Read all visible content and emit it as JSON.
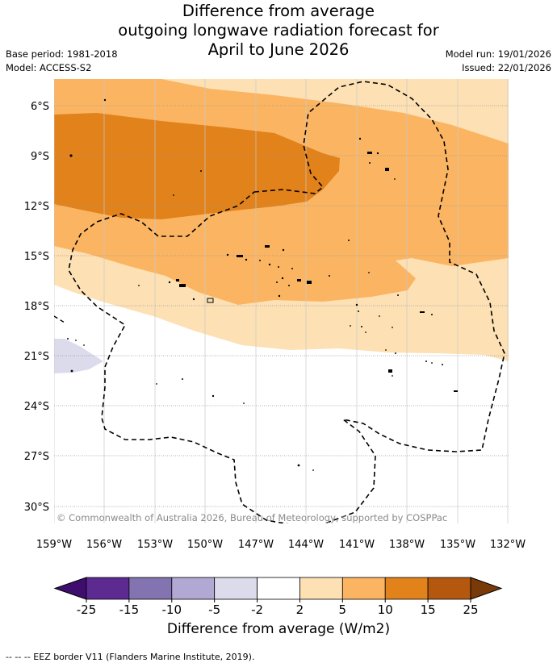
{
  "header": {
    "title_line1": "Difference from average",
    "title_line2": "outgoing longwave radiation forecast for",
    "title_line3": "April to June 2026",
    "base_period": "Base period: 1981-2018",
    "model": "Model: ACCESS-S2",
    "model_run": "Model run: 19/01/2026",
    "issued": "Issued: 22/01/2026"
  },
  "map": {
    "lat_labels": [
      "6°S",
      "9°S",
      "12°S",
      "15°S",
      "18°S",
      "21°S",
      "24°S",
      "27°S",
      "30°S"
    ],
    "lon_labels": [
      "159°W",
      "156°W",
      "153°W",
      "150°W",
      "147°W",
      "144°W",
      "141°W",
      "138°W",
      "135°W",
      "132°W"
    ],
    "copyright": "© Commonwealth of Australia 2026, Bureau of Meteorology, supported by COSPPac"
  },
  "colorbar": {
    "ticks": [
      "-25",
      "-15",
      "-10",
      "-5",
      "-2",
      "2",
      "5",
      "10",
      "15",
      "25"
    ],
    "colors": [
      "#3f0d6e",
      "#5c2a91",
      "#8373b0",
      "#b1a9d3",
      "#dbdbeb",
      "#ffffff",
      "#fde0b4",
      "#fbb562",
      "#e2821b",
      "#b45810",
      "#7a3a07"
    ],
    "label": "Difference from average (W/m2)"
  },
  "legend_note": "--  --  -- EEZ border V11 (Flanders Marine Institute, 2019)."
}
